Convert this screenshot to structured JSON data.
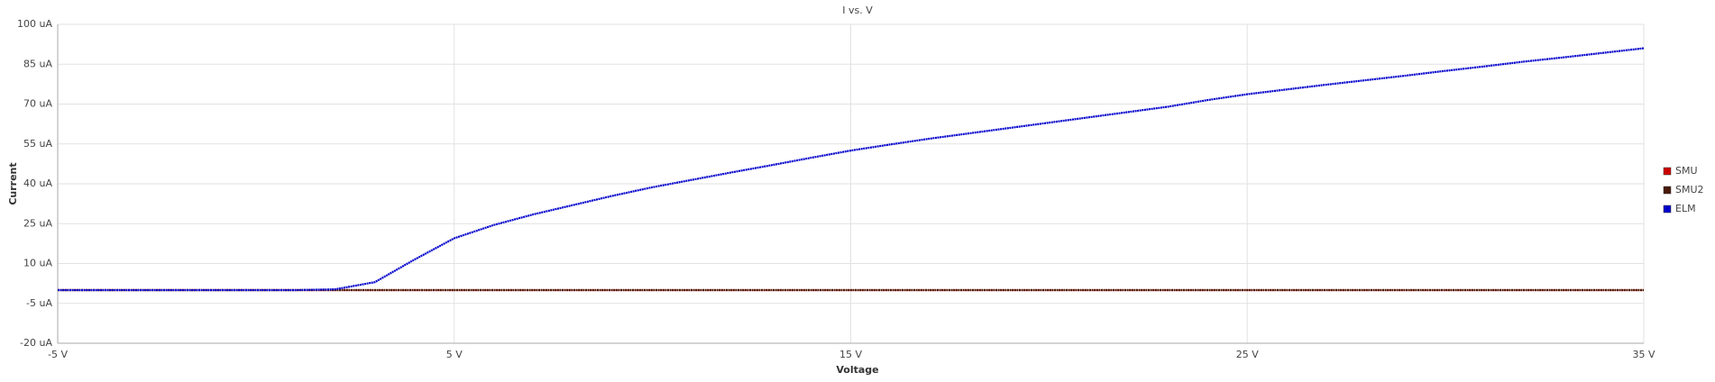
{
  "chart_data": {
    "type": "line",
    "title": "I vs. V",
    "x_label": "Voltage",
    "y_label": "Current",
    "x": [
      -5,
      -4,
      -3,
      -2,
      -1,
      0,
      1,
      2,
      3,
      4,
      5,
      6,
      7,
      8,
      9,
      10,
      11,
      12,
      13,
      14,
      15,
      16,
      17,
      18,
      19,
      20,
      21,
      22,
      23,
      24,
      25,
      26,
      27,
      28,
      29,
      30,
      31,
      32,
      33,
      34,
      35
    ],
    "series": [
      {
        "name": "SMU",
        "color": "#cc0000",
        "values": [
          0,
          0,
          0,
          0,
          0,
          0,
          0,
          0,
          0,
          0,
          0,
          0,
          0,
          0,
          0,
          0,
          0,
          0,
          0,
          0,
          0,
          0,
          0,
          0,
          0,
          0,
          0,
          0,
          0,
          0,
          0,
          0,
          0,
          0,
          0,
          0,
          0,
          0,
          0,
          0,
          0
        ]
      },
      {
        "name": "SMU2",
        "color": "#4a1a08",
        "values": [
          0,
          0,
          0,
          0,
          0,
          0,
          0,
          0,
          0,
          0,
          0,
          0,
          0,
          0,
          0,
          0,
          0,
          0,
          0,
          0,
          0,
          0,
          0,
          0,
          0,
          0,
          0,
          0,
          0,
          0,
          0,
          0,
          0,
          0,
          0,
          0,
          0,
          0,
          0,
          0,
          0
        ]
      },
      {
        "name": "ELM",
        "color": "#0000cc",
        "values": [
          0,
          0,
          0,
          0,
          0,
          0,
          0,
          0.3,
          3,
          11.5,
          19.5,
          24.5,
          28.5,
          32,
          35.5,
          38.7,
          41.5,
          44.3,
          47,
          49.8,
          52.5,
          54.8,
          57,
          59,
          61,
          63,
          65,
          67,
          69,
          71.5,
          73.7,
          75.5,
          77.3,
          79,
          80.7,
          82.5,
          84.2,
          86,
          87.6,
          89.3,
          91
        ]
      }
    ],
    "xlim": [
      -5,
      35
    ],
    "xticks": [
      {
        "value": -5,
        "label": "-5 V"
      },
      {
        "value": 5,
        "label": "5 V"
      },
      {
        "value": 15,
        "label": "15 V"
      },
      {
        "value": 25,
        "label": "25 V"
      },
      {
        "value": 35,
        "label": "35 V"
      }
    ],
    "ylim": [
      -20,
      100
    ],
    "yticks": [
      {
        "value": -20,
        "label": "-20 uA"
      },
      {
        "value": -5,
        "label": "-5 uA"
      },
      {
        "value": 10,
        "label": "10 uA"
      },
      {
        "value": 25,
        "label": "25 uA"
      },
      {
        "value": 40,
        "label": "40 uA"
      },
      {
        "value": 55,
        "label": "55 uA"
      },
      {
        "value": 70,
        "label": "70 uA"
      },
      {
        "value": 85,
        "label": "85 uA"
      },
      {
        "value": 100,
        "label": "100 uA"
      }
    ],
    "grid": true,
    "legend": "right"
  }
}
